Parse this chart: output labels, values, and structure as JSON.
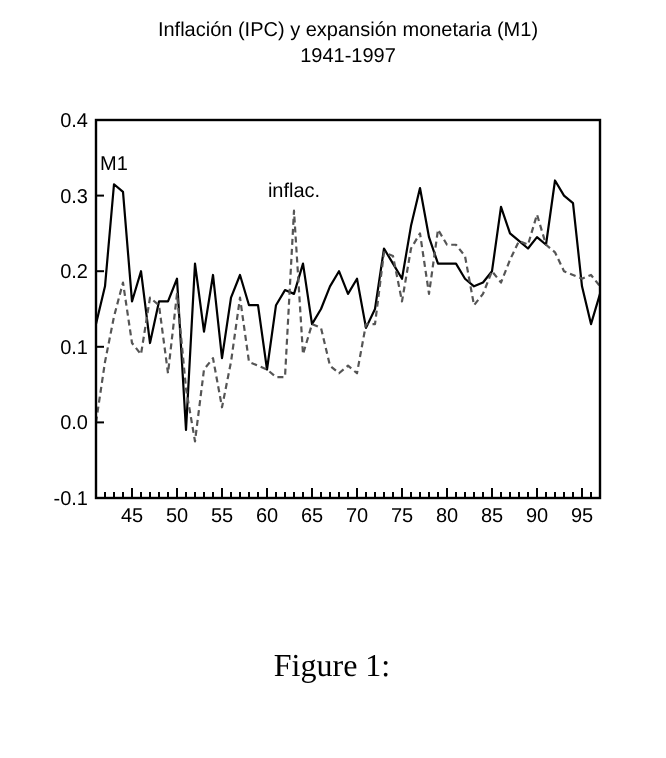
{
  "chart_data": {
    "type": "line",
    "title": "Inflación (IPC) y expansión monetaria (M1)",
    "subtitle": "1941-1997",
    "x": [
      1941,
      1942,
      1943,
      1944,
      1945,
      1946,
      1947,
      1948,
      1949,
      1950,
      1951,
      1952,
      1953,
      1954,
      1955,
      1956,
      1957,
      1958,
      1959,
      1960,
      1961,
      1962,
      1963,
      1964,
      1965,
      1966,
      1967,
      1968,
      1969,
      1970,
      1971,
      1972,
      1973,
      1974,
      1975,
      1976,
      1977,
      1978,
      1979,
      1980,
      1981,
      1982,
      1983,
      1984,
      1985,
      1986,
      1987,
      1988,
      1989,
      1990,
      1991,
      1992,
      1993,
      1994,
      1995,
      1996,
      1997
    ],
    "series": [
      {
        "color": "#000000",
        "line_style": "solid",
        "values": [
          0.13,
          0.18,
          0.315,
          0.305,
          0.16,
          0.2,
          0.105,
          0.16,
          0.16,
          0.19,
          -0.01,
          0.21,
          0.12,
          0.195,
          0.085,
          0.165,
          0.195,
          0.155,
          0.155,
          0.07,
          0.155,
          0.175,
          0.17,
          0.21,
          0.13,
          0.15,
          0.18,
          0.2,
          0.17,
          0.19,
          0.125,
          0.15,
          0.23,
          0.21,
          0.19,
          0.26,
          0.31,
          0.245,
          0.21,
          0.21,
          0.21,
          0.19,
          0.18,
          0.185,
          0.2,
          0.285,
          0.25,
          0.24,
          0.23,
          0.245,
          0.235,
          0.32,
          0.3,
          0.29,
          0.18,
          0.13,
          0.17
        ]
      },
      {
        "color": "#555555",
        "line_style": "dashed",
        "values": [
          0.0,
          0.08,
          0.14,
          0.185,
          0.105,
          0.09,
          0.165,
          0.155,
          0.065,
          0.17,
          0.045,
          -0.025,
          0.07,
          0.085,
          0.02,
          0.08,
          0.165,
          0.08,
          0.075,
          0.07,
          0.06,
          0.06,
          0.28,
          0.09,
          0.13,
          0.125,
          0.075,
          0.065,
          0.075,
          0.065,
          0.13,
          0.13,
          0.225,
          0.22,
          0.16,
          0.23,
          0.25,
          0.17,
          0.255,
          0.235,
          0.235,
          0.22,
          0.155,
          0.17,
          0.2,
          0.185,
          0.215,
          0.24,
          0.235,
          0.275,
          0.235,
          0.225,
          0.2,
          0.195,
          0.19,
          0.195,
          0.18
        ]
      }
    ],
    "xlim": [
      1941,
      1997
    ],
    "xticks": [
      {
        "value": 1945,
        "label": "45"
      },
      {
        "value": 1950,
        "label": "50"
      },
      {
        "value": 1955,
        "label": "55"
      },
      {
        "value": 1960,
        "label": "60"
      },
      {
        "value": 1965,
        "label": "65"
      },
      {
        "value": 1970,
        "label": "70"
      },
      {
        "value": 1975,
        "label": "75"
      },
      {
        "value": 1980,
        "label": "80"
      },
      {
        "value": 1985,
        "label": "85"
      },
      {
        "value": 1990,
        "label": "90"
      },
      {
        "value": 1995,
        "label": "95"
      },
      {
        "value": 1942,
        "label": null
      },
      {
        "value": 1943,
        "label": null
      },
      {
        "value": 1944,
        "label": null
      },
      {
        "value": 1946,
        "label": null
      },
      {
        "value": 1947,
        "label": null
      },
      {
        "value": 1948,
        "label": null
      },
      {
        "value": 1949,
        "label": null
      },
      {
        "value": 1951,
        "label": null
      },
      {
        "value": 1952,
        "label": null
      },
      {
        "value": 1953,
        "label": null
      },
      {
        "value": 1954,
        "label": null
      },
      {
        "value": 1956,
        "label": null
      },
      {
        "value": 1957,
        "label": null
      },
      {
        "value": 1958,
        "label": null
      },
      {
        "value": 1959,
        "label": null
      },
      {
        "value": 1961,
        "label": null
      },
      {
        "value": 1962,
        "label": null
      },
      {
        "value": 1963,
        "label": null
      },
      {
        "value": 1964,
        "label": null
      },
      {
        "value": 1966,
        "label": null
      },
      {
        "value": 1967,
        "label": null
      },
      {
        "value": 1968,
        "label": null
      },
      {
        "value": 1969,
        "label": null
      },
      {
        "value": 1971,
        "label": null
      },
      {
        "value": 1972,
        "label": null
      },
      {
        "value": 1973,
        "label": null
      },
      {
        "value": 1974,
        "label": null
      },
      {
        "value": 1976,
        "label": null
      },
      {
        "value": 1977,
        "label": null
      },
      {
        "value": 1978,
        "label": null
      },
      {
        "value": 1979,
        "label": null
      },
      {
        "value": 1981,
        "label": null
      },
      {
        "value": 1982,
        "label": null
      },
      {
        "value": 1983,
        "label": null
      },
      {
        "value": 1984,
        "label": null
      },
      {
        "value": 1986,
        "label": null
      },
      {
        "value": 1987,
        "label": null
      },
      {
        "value": 1988,
        "label": null
      },
      {
        "value": 1989,
        "label": null
      },
      {
        "value": 1991,
        "label": null
      },
      {
        "value": 1992,
        "label": null
      },
      {
        "value": 1993,
        "label": null
      },
      {
        "value": 1994,
        "label": null
      },
      {
        "value": 1996,
        "label": null
      }
    ],
    "ylim": [
      -0.1,
      0.4
    ],
    "yticks": [
      {
        "value": -0.1,
        "label": "-0.1"
      },
      {
        "value": 0,
        "label": "0.0"
      },
      {
        "value": 0.1,
        "label": "0.1"
      },
      {
        "value": 0.2,
        "label": "0.2"
      },
      {
        "value": 0.3,
        "label": "0.3"
      },
      {
        "value": 0.4,
        "label": "0.4"
      }
    ],
    "grid": false,
    "annotations": [
      {
        "text": "M1",
        "x": 1943,
        "y": 0.315
      },
      {
        "text": "inflac.",
        "x": 1963,
        "y": 0.28
      },
      "Figure 1:"
    ]
  }
}
